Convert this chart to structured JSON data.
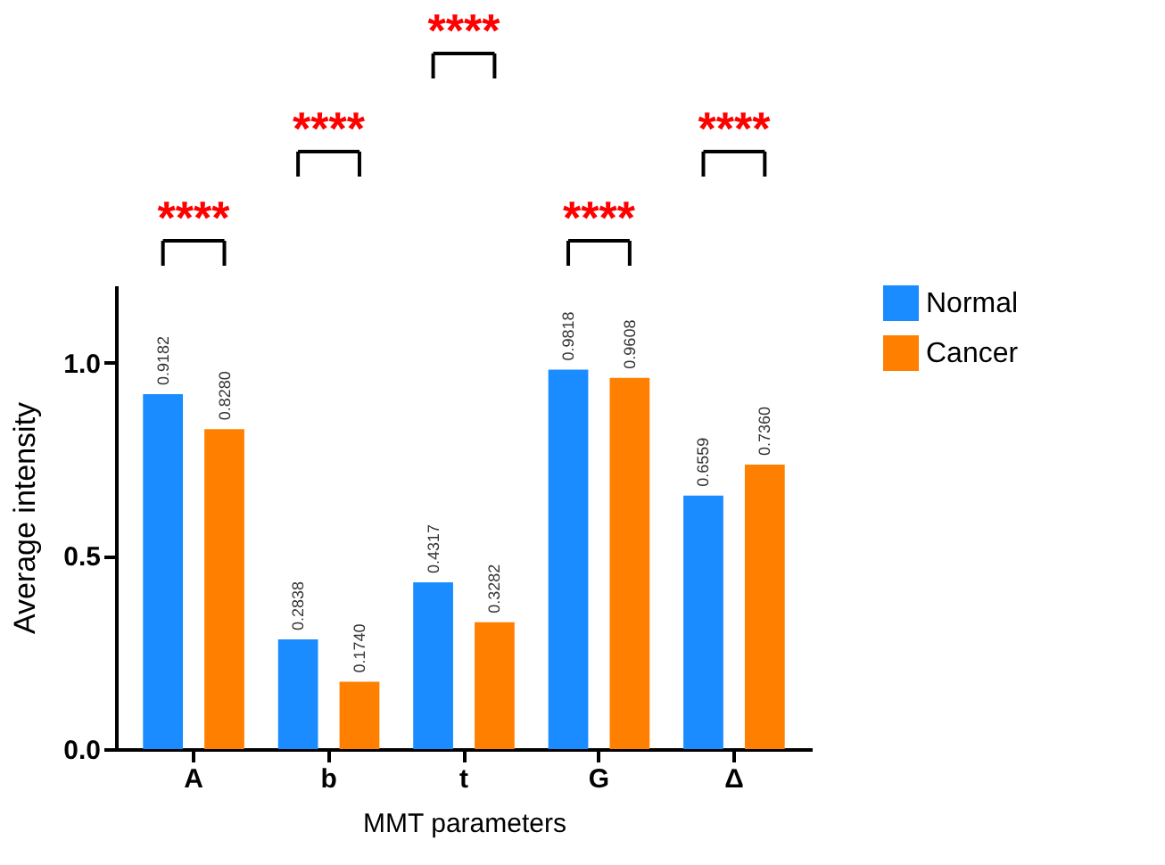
{
  "chart_data": {
    "type": "bar",
    "xlabel": "MMT parameters",
    "ylabel": "Average intensity",
    "categories": [
      "A",
      "b",
      "t",
      "G",
      "Δ"
    ],
    "series": [
      {
        "name": "Normal",
        "color": "#1a8cff",
        "values": [
          0.9182,
          0.2838,
          0.4317,
          0.9818,
          0.6559
        ]
      },
      {
        "name": "Cancer",
        "color": "#ff8000",
        "values": [
          0.828,
          0.174,
          0.3282,
          0.9608,
          0.736
        ]
      }
    ],
    "value_labels": [
      [
        "0.9182",
        "0.2838",
        "0.4317",
        "0.9818",
        "0.6559"
      ],
      [
        "0.8280",
        "0.1740",
        "0.3282",
        "0.9608",
        "0.7360"
      ]
    ],
    "ylim": [
      0,
      1.2
    ],
    "yticks": [
      {
        "value": 0,
        "label": "0.0"
      },
      {
        "value": 0.5,
        "label": "0.5"
      },
      {
        "value": 1,
        "label": "1.0"
      }
    ],
    "annotations": [
      "****",
      "****",
      "****",
      "****",
      "****"
    ],
    "legend": "right",
    "grid": false
  }
}
